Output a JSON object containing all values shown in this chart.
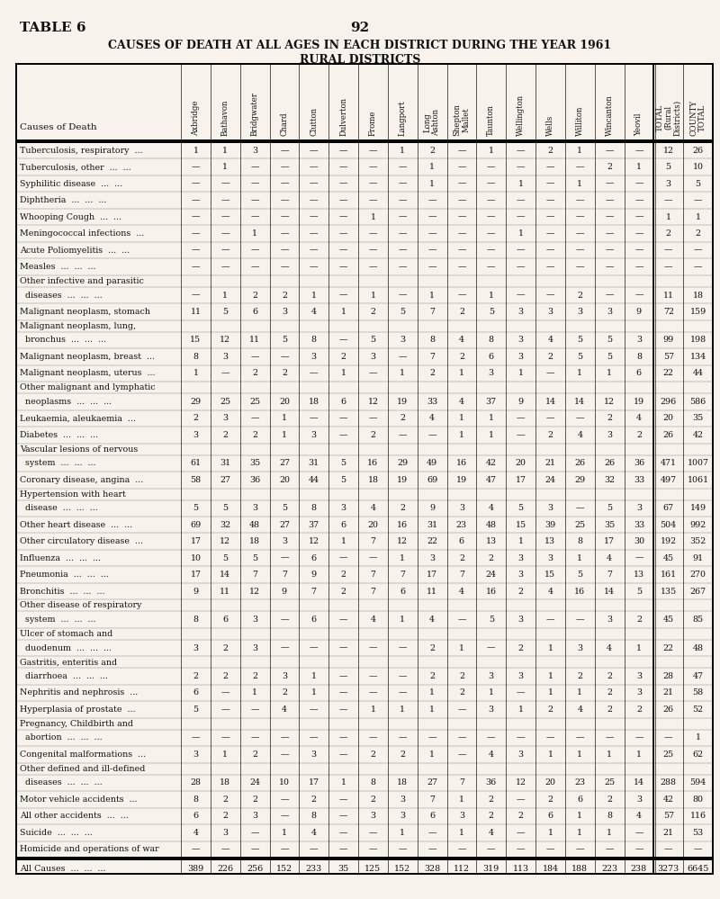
{
  "title_left": "TABLE 6",
  "title_center": "92",
  "title1": "CAUSES OF DEATH AT ALL AGES IN EACH DISTRICT DURING THE YEAR 1961",
  "title2": "RURAL DISTRICTS",
  "col_names": [
    "Axbridge",
    "Bathavon",
    "Bridgwater",
    "Chard",
    "Clutton",
    "Dulverton",
    "Frome",
    "Langport",
    "Long\nAshton",
    "Shepton\nMallet",
    "Taunton",
    "Wellington",
    "Wells",
    "Williton",
    "Wincanton",
    "Yeovil",
    "TOTAL\n(Rural\nDistricts)",
    "COUNTY\nTOTAL"
  ],
  "rows": [
    {
      "cause": "Tuberculosis, respiratory  ...",
      "indent": false,
      "vals": [
        "1",
        "1",
        "3",
        "—",
        "—",
        "—",
        "—",
        "1",
        "2",
        "—",
        "1",
        "—",
        "2",
        "1",
        "—",
        "—",
        "12",
        "26"
      ]
    },
    {
      "cause": "Tuberculosis, other  ...  ...",
      "indent": false,
      "vals": [
        "—",
        "1",
        "—",
        "—",
        "—",
        "—",
        "—",
        "—",
        "1",
        "—",
        "—",
        "—",
        "—",
        "—",
        "2",
        "1",
        "5",
        "10"
      ]
    },
    {
      "cause": "Syphilitic disease  ...  ...",
      "indent": false,
      "vals": [
        "—",
        "—",
        "—",
        "—",
        "—",
        "—",
        "—",
        "—",
        "1",
        "—",
        "—",
        "1",
        "—",
        "1",
        "—",
        "—",
        "3",
        "5"
      ]
    },
    {
      "cause": "Diphtheria  ...  ...  ...",
      "indent": false,
      "vals": [
        "—",
        "—",
        "—",
        "—",
        "—",
        "—",
        "—",
        "—",
        "—",
        "—",
        "—",
        "—",
        "—",
        "—",
        "—",
        "—",
        "—",
        "—"
      ]
    },
    {
      "cause": "Whooping Cough  ...  ...",
      "indent": false,
      "vals": [
        "—",
        "—",
        "—",
        "—",
        "—",
        "—",
        "1",
        "—",
        "—",
        "—",
        "—",
        "—",
        "—",
        "—",
        "—",
        "—",
        "1",
        "1"
      ]
    },
    {
      "cause": "Meningococcal infections  ...",
      "indent": false,
      "vals": [
        "—",
        "—",
        "1",
        "—",
        "—",
        "—",
        "—",
        "—",
        "—",
        "—",
        "—",
        "1",
        "—",
        "—",
        "—",
        "—",
        "2",
        "2"
      ]
    },
    {
      "cause": "Acute Poliomyelitis  ...  ...",
      "indent": false,
      "vals": [
        "—",
        "—",
        "—",
        "—",
        "—",
        "—",
        "—",
        "—",
        "—",
        "—",
        "—",
        "—",
        "—",
        "—",
        "—",
        "—",
        "—",
        "—"
      ]
    },
    {
      "cause": "Measles  ...  ...  ...",
      "indent": false,
      "vals": [
        "—",
        "—",
        "—",
        "—",
        "—",
        "—",
        "—",
        "—",
        "—",
        "—",
        "—",
        "—",
        "—",
        "—",
        "—",
        "—",
        "—",
        "—"
      ]
    },
    {
      "cause": "Other infective and parasitic",
      "indent": false,
      "vals": [
        null,
        null,
        null,
        null,
        null,
        null,
        null,
        null,
        null,
        null,
        null,
        null,
        null,
        null,
        null,
        null,
        null,
        null
      ]
    },
    {
      "cause": "  diseases  ...  ...  ...",
      "indent": true,
      "vals": [
        "—",
        "1",
        "2",
        "2",
        "1",
        "—",
        "1",
        "—",
        "1",
        "—",
        "1",
        "—",
        "—",
        "2",
        "—",
        "—",
        "11",
        "18"
      ]
    },
    {
      "cause": "Malignant neoplasm, stomach",
      "indent": false,
      "vals": [
        "11",
        "5",
        "6",
        "3",
        "4",
        "1",
        "2",
        "5",
        "7",
        "2",
        "5",
        "3",
        "3",
        "3",
        "3",
        "9",
        "72",
        "159"
      ]
    },
    {
      "cause": "Malignant neoplasm, lung,",
      "indent": false,
      "vals": [
        null,
        null,
        null,
        null,
        null,
        null,
        null,
        null,
        null,
        null,
        null,
        null,
        null,
        null,
        null,
        null,
        null,
        null
      ]
    },
    {
      "cause": "  bronchus  ...  ...  ...",
      "indent": true,
      "vals": [
        "15",
        "12",
        "11",
        "5",
        "8",
        "—",
        "5",
        "3",
        "8",
        "4",
        "8",
        "3",
        "4",
        "5",
        "5",
        "3",
        "99",
        "198"
      ]
    },
    {
      "cause": "Malignant neoplasm, breast  ...",
      "indent": false,
      "vals": [
        "8",
        "3",
        "—",
        "—",
        "3",
        "2",
        "3",
        "—",
        "7",
        "2",
        "6",
        "3",
        "2",
        "5",
        "5",
        "8",
        "57",
        "134"
      ]
    },
    {
      "cause": "Malignant neoplasm, uterus  ...",
      "indent": false,
      "vals": [
        "1",
        "—",
        "2",
        "2",
        "—",
        "1",
        "—",
        "1",
        "2",
        "1",
        "3",
        "1",
        "—",
        "1",
        "1",
        "6",
        "22",
        "44"
      ]
    },
    {
      "cause": "Other malignant and lymphatic",
      "indent": false,
      "vals": [
        null,
        null,
        null,
        null,
        null,
        null,
        null,
        null,
        null,
        null,
        null,
        null,
        null,
        null,
        null,
        null,
        null,
        null
      ]
    },
    {
      "cause": "  neoplasms  ...  ...  ...",
      "indent": true,
      "vals": [
        "29",
        "25",
        "25",
        "20",
        "18",
        "6",
        "12",
        "19",
        "33",
        "4",
        "37",
        "9",
        "14",
        "14",
        "12",
        "19",
        "296",
        "586"
      ]
    },
    {
      "cause": "Leukaemia, aleukaemia  ...",
      "indent": false,
      "vals": [
        "2",
        "3",
        "—",
        "1",
        "—",
        "—",
        "—",
        "2",
        "4",
        "1",
        "1",
        "—",
        "—",
        "—",
        "2",
        "4",
        "20",
        "35"
      ]
    },
    {
      "cause": "Diabetes  ...  ...  ...",
      "indent": false,
      "vals": [
        "3",
        "2",
        "2",
        "1",
        "3",
        "—",
        "2",
        "—",
        "—",
        "1",
        "1",
        "—",
        "2",
        "4",
        "3",
        "2",
        "26",
        "42"
      ]
    },
    {
      "cause": "Vascular lesions of nervous",
      "indent": false,
      "vals": [
        null,
        null,
        null,
        null,
        null,
        null,
        null,
        null,
        null,
        null,
        null,
        null,
        null,
        null,
        null,
        null,
        null,
        null
      ]
    },
    {
      "cause": "  system  ...  ...  ...",
      "indent": true,
      "vals": [
        "61",
        "31",
        "35",
        "27",
        "31",
        "5",
        "16",
        "29",
        "49",
        "16",
        "42",
        "20",
        "21",
        "26",
        "26",
        "36",
        "471",
        "1007"
      ]
    },
    {
      "cause": "Coronary disease, angina  ...",
      "indent": false,
      "vals": [
        "58",
        "27",
        "36",
        "20",
        "44",
        "5",
        "18",
        "19",
        "69",
        "19",
        "47",
        "17",
        "24",
        "29",
        "32",
        "33",
        "497",
        "1061"
      ]
    },
    {
      "cause": "Hypertension with heart",
      "indent": false,
      "vals": [
        null,
        null,
        null,
        null,
        null,
        null,
        null,
        null,
        null,
        null,
        null,
        null,
        null,
        null,
        null,
        null,
        null,
        null
      ]
    },
    {
      "cause": "  disease  ...  ...  ...",
      "indent": true,
      "vals": [
        "5",
        "5",
        "3",
        "5",
        "8",
        "3",
        "4",
        "2",
        "9",
        "3",
        "4",
        "5",
        "3",
        "—",
        "5",
        "3",
        "67",
        "149"
      ]
    },
    {
      "cause": "Other heart disease  ...  ...",
      "indent": false,
      "vals": [
        "69",
        "32",
        "48",
        "27",
        "37",
        "6",
        "20",
        "16",
        "31",
        "23",
        "48",
        "15",
        "39",
        "25",
        "35",
        "33",
        "504",
        "992"
      ]
    },
    {
      "cause": "Other circulatory disease  ...",
      "indent": false,
      "vals": [
        "17",
        "12",
        "18",
        "3",
        "12",
        "1",
        "7",
        "12",
        "22",
        "6",
        "13",
        "1",
        "13",
        "8",
        "17",
        "30",
        "192",
        "352"
      ]
    },
    {
      "cause": "Influenza  ...  ...  ...",
      "indent": false,
      "vals": [
        "10",
        "5",
        "5",
        "—",
        "6",
        "—",
        "—",
        "1",
        "3",
        "2",
        "2",
        "3",
        "3",
        "1",
        "4",
        "—",
        "45",
        "91"
      ]
    },
    {
      "cause": "Pneumonia  ...  ...  ...",
      "indent": false,
      "vals": [
        "17",
        "14",
        "7",
        "7",
        "9",
        "2",
        "7",
        "7",
        "17",
        "7",
        "24",
        "3",
        "15",
        "5",
        "7",
        "13",
        "161",
        "270"
      ]
    },
    {
      "cause": "Bronchitis  ...  ...  ...",
      "indent": false,
      "vals": [
        "9",
        "11",
        "12",
        "9",
        "7",
        "2",
        "7",
        "6",
        "11",
        "4",
        "16",
        "2",
        "4",
        "16",
        "14",
        "5",
        "135",
        "267"
      ]
    },
    {
      "cause": "Other disease of respiratory",
      "indent": false,
      "vals": [
        null,
        null,
        null,
        null,
        null,
        null,
        null,
        null,
        null,
        null,
        null,
        null,
        null,
        null,
        null,
        null,
        null,
        null
      ]
    },
    {
      "cause": "  system  ...  ...  ...",
      "indent": true,
      "vals": [
        "8",
        "6",
        "3",
        "—",
        "6",
        "—",
        "4",
        "1",
        "4",
        "—",
        "5",
        "3",
        "—",
        "—",
        "3",
        "2",
        "45",
        "85"
      ]
    },
    {
      "cause": "Ulcer of stomach and",
      "indent": false,
      "vals": [
        null,
        null,
        null,
        null,
        null,
        null,
        null,
        null,
        null,
        null,
        null,
        null,
        null,
        null,
        null,
        null,
        null,
        null
      ]
    },
    {
      "cause": "  duodenum  ...  ...  ...",
      "indent": true,
      "vals": [
        "3",
        "2",
        "3",
        "—",
        "—",
        "—",
        "—",
        "—",
        "2",
        "1",
        "—",
        "2",
        "1",
        "3",
        "4",
        "1",
        "22",
        "48"
      ]
    },
    {
      "cause": "Gastritis, enteritis and",
      "indent": false,
      "vals": [
        null,
        null,
        null,
        null,
        null,
        null,
        null,
        null,
        null,
        null,
        null,
        null,
        null,
        null,
        null,
        null,
        null,
        null
      ]
    },
    {
      "cause": "  diarrhoea  ...  ...  ...",
      "indent": true,
      "vals": [
        "2",
        "2",
        "2",
        "3",
        "1",
        "—",
        "—",
        "—",
        "2",
        "2",
        "3",
        "3",
        "1",
        "2",
        "2",
        "3",
        "28",
        "47"
      ]
    },
    {
      "cause": "Nephritis and nephrosis  ...",
      "indent": false,
      "vals": [
        "6",
        "—",
        "1",
        "2",
        "1",
        "—",
        "—",
        "—",
        "1",
        "2",
        "1",
        "—",
        "1",
        "1",
        "2",
        "3",
        "21",
        "58"
      ]
    },
    {
      "cause": "Hyperplasia of prostate  ...",
      "indent": false,
      "vals": [
        "5",
        "—",
        "—",
        "4",
        "—",
        "—",
        "1",
        "1",
        "1",
        "—",
        "3",
        "1",
        "2",
        "4",
        "2",
        "2",
        "26",
        "52"
      ]
    },
    {
      "cause": "Pregnancy, Childbirth and",
      "indent": false,
      "vals": [
        null,
        null,
        null,
        null,
        null,
        null,
        null,
        null,
        null,
        null,
        null,
        null,
        null,
        null,
        null,
        null,
        null,
        null
      ]
    },
    {
      "cause": "  abortion  ...  ...  ...",
      "indent": true,
      "vals": [
        "—",
        "—",
        "—",
        "—",
        "—",
        "—",
        "—",
        "—",
        "—",
        "—",
        "—",
        "—",
        "—",
        "—",
        "—",
        "—",
        "—",
        "1"
      ]
    },
    {
      "cause": "Congenital malformations  ...",
      "indent": false,
      "vals": [
        "3",
        "1",
        "2",
        "—",
        "3",
        "—",
        "2",
        "2",
        "1",
        "—",
        "4",
        "3",
        "1",
        "1",
        "1",
        "1",
        "25",
        "62"
      ]
    },
    {
      "cause": "Other defined and ill-defined",
      "indent": false,
      "vals": [
        null,
        null,
        null,
        null,
        null,
        null,
        null,
        null,
        null,
        null,
        null,
        null,
        null,
        null,
        null,
        null,
        null,
        null
      ]
    },
    {
      "cause": "  diseases  ...  ...  ...",
      "indent": true,
      "vals": [
        "28",
        "18",
        "24",
        "10",
        "17",
        "1",
        "8",
        "18",
        "27",
        "7",
        "36",
        "12",
        "20",
        "23",
        "25",
        "14",
        "288",
        "594"
      ]
    },
    {
      "cause": "Motor vehicle accidents  ...",
      "indent": false,
      "vals": [
        "8",
        "2",
        "2",
        "—",
        "2",
        "—",
        "2",
        "3",
        "7",
        "1",
        "2",
        "—",
        "2",
        "6",
        "2",
        "3",
        "42",
        "80"
      ]
    },
    {
      "cause": "All other accidents  ...  ...",
      "indent": false,
      "vals": [
        "6",
        "2",
        "3",
        "—",
        "8",
        "—",
        "3",
        "3",
        "6",
        "3",
        "2",
        "2",
        "6",
        "1",
        "8",
        "4",
        "57",
        "116"
      ]
    },
    {
      "cause": "Suicide  ...  ...  ...",
      "indent": false,
      "vals": [
        "4",
        "3",
        "—",
        "1",
        "4",
        "—",
        "—",
        "1",
        "—",
        "1",
        "4",
        "—",
        "1",
        "1",
        "1",
        "—",
        "21",
        "53"
      ]
    },
    {
      "cause": "Homicide and operations of war",
      "indent": false,
      "vals": [
        "—",
        "—",
        "—",
        "—",
        "—",
        "—",
        "—",
        "—",
        "—",
        "—",
        "—",
        "—",
        "—",
        "—",
        "—",
        "—",
        "—",
        "—"
      ]
    }
  ],
  "totals_row": {
    "cause": "All Causes  ...  ...  ...",
    "vals": [
      "389",
      "226",
      "256",
      "152",
      "233",
      "35",
      "125",
      "152",
      "328",
      "112",
      "319",
      "113",
      "184",
      "188",
      "223",
      "238",
      "3273",
      "6645"
    ]
  },
  "bg_color": "#f7f3ec",
  "text_color": "#111111",
  "body_fontsize": 6.8,
  "title_fontsize": 9.5
}
